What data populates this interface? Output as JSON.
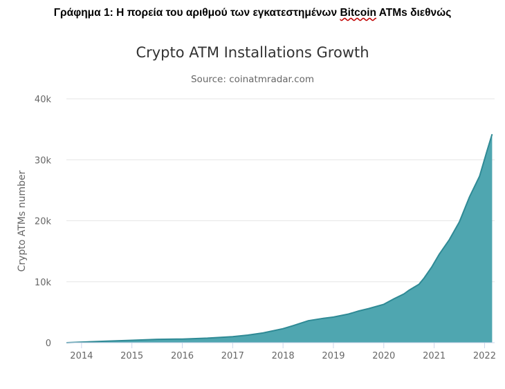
{
  "document": {
    "caption_prefix": "Γράφημα 1: Η πορεία του αριθμού των εγκατεστημένων ",
    "caption_flagged_word": "Bitcoin",
    "caption_suffix": " ATMs διεθνώς"
  },
  "colors": {
    "area_fill": "#4fa6b0",
    "area_line": "#2f8a95",
    "grid": "#e6e6e6",
    "axis_text": "#666666",
    "title_text": "#333333"
  },
  "chart_data": {
    "type": "area",
    "title": "Crypto ATM Installations Growth",
    "subtitle": "Source: coinatmradar.com",
    "xlabel": "",
    "ylabel": "Crypto ATMs number",
    "xlim": [
      2013.7,
      2022.2
    ],
    "ylim": [
      0,
      40000
    ],
    "x_ticks": [
      2014,
      2015,
      2016,
      2017,
      2018,
      2019,
      2020,
      2021,
      2022
    ],
    "x_tick_labels": [
      "2014",
      "2015",
      "2016",
      "2017",
      "2018",
      "2019",
      "2020",
      "2021",
      "2022"
    ],
    "y_ticks": [
      0,
      10000,
      20000,
      30000,
      40000
    ],
    "y_tick_labels": [
      "0",
      "10k",
      "20k",
      "30k",
      "40k"
    ],
    "grid": true,
    "series": [
      {
        "x": [
          2013.7,
          2014.0,
          2014.5,
          2015.0,
          2015.5,
          2016.0,
          2016.5,
          2017.0,
          2017.3,
          2017.6,
          2018.0,
          2018.2,
          2018.5,
          2018.8,
          2019.0,
          2019.3,
          2019.5,
          2019.7,
          2020.0,
          2020.2,
          2020.4,
          2020.5,
          2020.7,
          2020.8,
          2020.95,
          2021.1,
          2021.3,
          2021.5,
          2021.7,
          2021.9,
          2022.05,
          2022.15
        ],
        "y": [
          0,
          100,
          250,
          400,
          550,
          600,
          750,
          1000,
          1250,
          1600,
          2300,
          2800,
          3600,
          4000,
          4200,
          4700,
          5200,
          5600,
          6300,
          7200,
          8000,
          8600,
          9600,
          10600,
          12400,
          14500,
          16900,
          19800,
          23900,
          27300,
          31500,
          34200
        ]
      }
    ]
  }
}
